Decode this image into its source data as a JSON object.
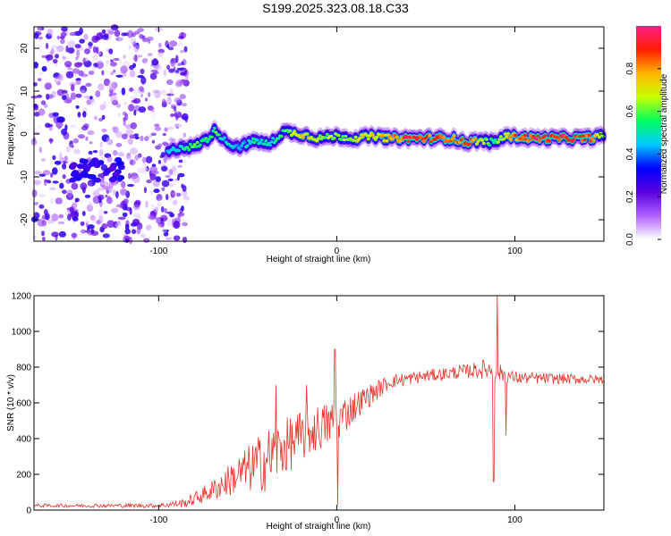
{
  "title": "S199.2025.323.08.18.C33",
  "colors": {
    "snr_line": "#e8332a",
    "spectro_bg": "#ffffff",
    "colormap": [
      "#ffffff",
      "#b060ff",
      "#5a00e0",
      "#0000ff",
      "#00c8ff",
      "#00ff60",
      "#c8ff00",
      "#ffb400",
      "#ff1e00",
      "#ff1e8c"
    ]
  },
  "chart_data": [
    {
      "type": "heatmap",
      "title": "S199.2025.323.08.18.C33",
      "xlabel": "Height of straight line (km)",
      "ylabel": "Frequency (Hz)",
      "xlim": [
        -170,
        150
      ],
      "ylim": [
        -25,
        25
      ],
      "xticks": [
        -100,
        0,
        100
      ],
      "yticks": [
        -20,
        -10,
        0,
        10,
        20
      ],
      "colorbar": {
        "label": "Normalized spectral amplitude",
        "range": [
          0,
          1
        ],
        "ticks": [
          0.0,
          0.2,
          0.4,
          0.6,
          0.8
        ]
      },
      "noise_region": {
        "x_from": -170,
        "x_to": -90,
        "amplitude": 0.3
      },
      "ridge": [
        {
          "x": -95,
          "freq": -4.5,
          "amp": 0.45
        },
        {
          "x": -88,
          "freq": -3.0,
          "amp": 0.5
        },
        {
          "x": -80,
          "freq": -3.0,
          "amp": 0.6
        },
        {
          "x": -72,
          "freq": -1.0,
          "amp": 0.55
        },
        {
          "x": -68,
          "freq": 1.0,
          "amp": 0.6
        },
        {
          "x": -62,
          "freq": -2.0,
          "amp": 0.5
        },
        {
          "x": -55,
          "freq": -3.0,
          "amp": 0.45
        },
        {
          "x": -45,
          "freq": -1.5,
          "amp": 0.55
        },
        {
          "x": -38,
          "freq": -2.5,
          "amp": 0.5
        },
        {
          "x": -30,
          "freq": 0.5,
          "amp": 0.6
        },
        {
          "x": -20,
          "freq": 0.0,
          "amp": 0.75
        },
        {
          "x": -10,
          "freq": -1.0,
          "amp": 0.7
        },
        {
          "x": 0,
          "freq": -0.5,
          "amp": 0.65
        },
        {
          "x": 10,
          "freq": -1.0,
          "amp": 0.7
        },
        {
          "x": 20,
          "freq": -0.5,
          "amp": 0.75
        },
        {
          "x": 30,
          "freq": -1.0,
          "amp": 0.8
        },
        {
          "x": 40,
          "freq": -1.0,
          "amp": 0.95
        },
        {
          "x": 55,
          "freq": -1.0,
          "amp": 0.9
        },
        {
          "x": 65,
          "freq": -1.0,
          "amp": 0.85
        },
        {
          "x": 72,
          "freq": -2.0,
          "amp": 0.95
        },
        {
          "x": 80,
          "freq": -1.5,
          "amp": 0.7
        },
        {
          "x": 88,
          "freq": -2.0,
          "amp": 0.55
        },
        {
          "x": 95,
          "freq": -0.5,
          "amp": 0.8
        },
        {
          "x": 110,
          "freq": -1.0,
          "amp": 0.95
        },
        {
          "x": 125,
          "freq": -1.0,
          "amp": 0.95
        },
        {
          "x": 140,
          "freq": -1.0,
          "amp": 0.95
        },
        {
          "x": 150,
          "freq": -0.5,
          "amp": 0.7
        }
      ]
    },
    {
      "type": "line",
      "xlabel": "Height of straight line (km)",
      "ylabel": "SNR (10 * v/v)",
      "xlim": [
        -170,
        150
      ],
      "ylim": [
        0,
        1200
      ],
      "xticks": [
        -100,
        0,
        100
      ],
      "yticks": [
        0,
        200,
        400,
        600,
        800,
        1000,
        1200
      ],
      "series": [
        {
          "name": "SNR",
          "envelope": [
            {
              "x": -170,
              "base": 25,
              "noise": 10
            },
            {
              "x": -100,
              "base": 25,
              "noise": 12
            },
            {
              "x": -85,
              "base": 40,
              "noise": 25
            },
            {
              "x": -70,
              "base": 110,
              "noise": 60
            },
            {
              "x": -55,
              "base": 200,
              "noise": 110
            },
            {
              "x": -40,
              "base": 280,
              "noise": 180
            },
            {
              "x": -30,
              "base": 350,
              "noise": 160
            },
            {
              "x": -15,
              "base": 440,
              "noise": 140
            },
            {
              "x": 0,
              "base": 500,
              "noise": 120
            },
            {
              "x": 15,
              "base": 620,
              "noise": 70
            },
            {
              "x": 30,
              "base": 720,
              "noise": 40
            },
            {
              "x": 50,
              "base": 750,
              "noise": 35
            },
            {
              "x": 75,
              "base": 780,
              "noise": 40
            },
            {
              "x": 85,
              "base": 790,
              "noise": 60
            },
            {
              "x": 100,
              "base": 740,
              "noise": 35
            },
            {
              "x": 150,
              "base": 730,
              "noise": 25
            }
          ],
          "spikes": [
            {
              "x": -34,
              "value": 700
            },
            {
              "x": -17,
              "value": 700
            },
            {
              "x": -1,
              "value": 900
            },
            {
              "x": 0.5,
              "value": 30
            },
            {
              "x": 88,
              "value": 160
            },
            {
              "x": 90,
              "value": 1200
            },
            {
              "x": 95,
              "value": 420
            }
          ]
        }
      ]
    }
  ]
}
